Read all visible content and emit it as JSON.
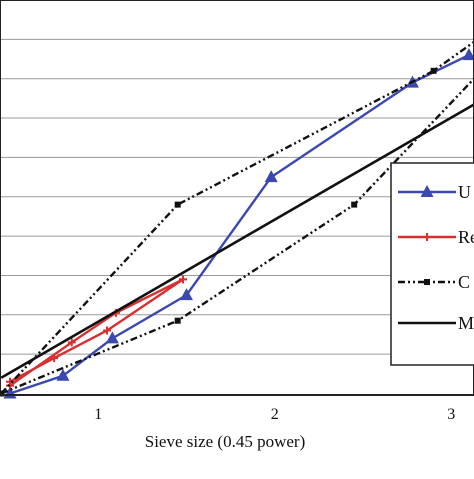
{
  "chart_data": {
    "type": "line",
    "title": "",
    "xlabel": "Sieve size (0.45 power)",
    "ylabel": "",
    "xlim": [
      0.45,
      3.15
    ],
    "ylim": [
      0,
      1
    ],
    "grid": true,
    "legend_position": "right",
    "x_ticks": [
      {
        "value": 1,
        "label": "1"
      },
      {
        "value": 2,
        "label": "2"
      },
      {
        "value": 3,
        "label": "3"
      }
    ],
    "y_gridlines": [
      0.1,
      0.2,
      0.3,
      0.4,
      0.5,
      0.6,
      0.7,
      0.8,
      0.9
    ],
    "series": [
      {
        "name": "U",
        "color": "#3b48b0",
        "style": "solid",
        "marker": "triangle",
        "points": [
          [
            0.5,
            0.0
          ],
          [
            0.8,
            0.045
          ],
          [
            1.08,
            0.14
          ],
          [
            1.5,
            0.25
          ],
          [
            1.98,
            0.55
          ],
          [
            2.78,
            0.79
          ],
          [
            3.1,
            0.86
          ]
        ]
      },
      {
        "name": "Re",
        "color": "#d83030",
        "style": "solid",
        "marker": "plus",
        "points": [
          [
            0.5,
            0.03
          ],
          [
            0.75,
            0.09
          ],
          [
            1.05,
            0.16
          ],
          [
            1.48,
            0.29
          ]
        ]
      },
      {
        "name": "Re",
        "color": "#d83030",
        "style": "solid",
        "marker": "plus",
        "points": [
          [
            0.5,
            0.02
          ],
          [
            0.85,
            0.13
          ],
          [
            1.1,
            0.205
          ],
          [
            1.48,
            0.29
          ]
        ]
      },
      {
        "name": "C",
        "color": "#111111",
        "style": "dashdot",
        "marker": "square",
        "points": [
          [
            0.45,
            0.0
          ],
          [
            1.45,
            0.48
          ],
          [
            2.9,
            0.82
          ],
          [
            3.15,
            0.9
          ]
        ]
      },
      {
        "name": "C",
        "color": "#111111",
        "style": "dashdot",
        "marker": "square",
        "points": [
          [
            0.45,
            0.0
          ],
          [
            1.45,
            0.185
          ],
          [
            2.45,
            0.48
          ],
          [
            3.15,
            0.81
          ]
        ]
      },
      {
        "name": "Ma",
        "color": "#111111",
        "style": "solid",
        "marker": "none",
        "points": [
          [
            0.45,
            0.04
          ],
          [
            3.15,
            0.74
          ]
        ]
      }
    ],
    "legend": [
      {
        "label": "U",
        "color": "#3b48b0",
        "style": "solid",
        "marker": "triangle"
      },
      {
        "label": "Re",
        "color": "#d83030",
        "style": "solid",
        "marker": "plus"
      },
      {
        "label": "C",
        "color": "#111111",
        "style": "dashdot",
        "marker": "square"
      },
      {
        "label": "Ma",
        "color": "#111111",
        "style": "solid",
        "marker": "none"
      }
    ]
  }
}
